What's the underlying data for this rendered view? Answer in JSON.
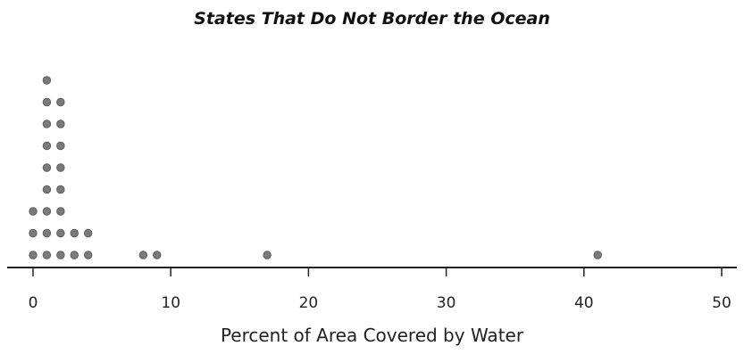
{
  "chart_data": {
    "type": "dot plot",
    "title": "States That Do Not Border the Ocean",
    "xlabel": "Percent of Area Covered by Water",
    "xlim": [
      0,
      50
    ],
    "ticks": [
      0,
      10,
      20,
      30,
      40,
      50
    ],
    "dot_color": "#7a7a7a",
    "points": [
      {
        "x": 0,
        "count": 3
      },
      {
        "x": 1,
        "count": 9
      },
      {
        "x": 2,
        "count": 8
      },
      {
        "x": 3,
        "count": 2
      },
      {
        "x": 4,
        "count": 2
      },
      {
        "x": 8,
        "count": 1
      },
      {
        "x": 9,
        "count": 1
      },
      {
        "x": 17,
        "count": 1
      },
      {
        "x": 41,
        "count": 1
      }
    ]
  }
}
